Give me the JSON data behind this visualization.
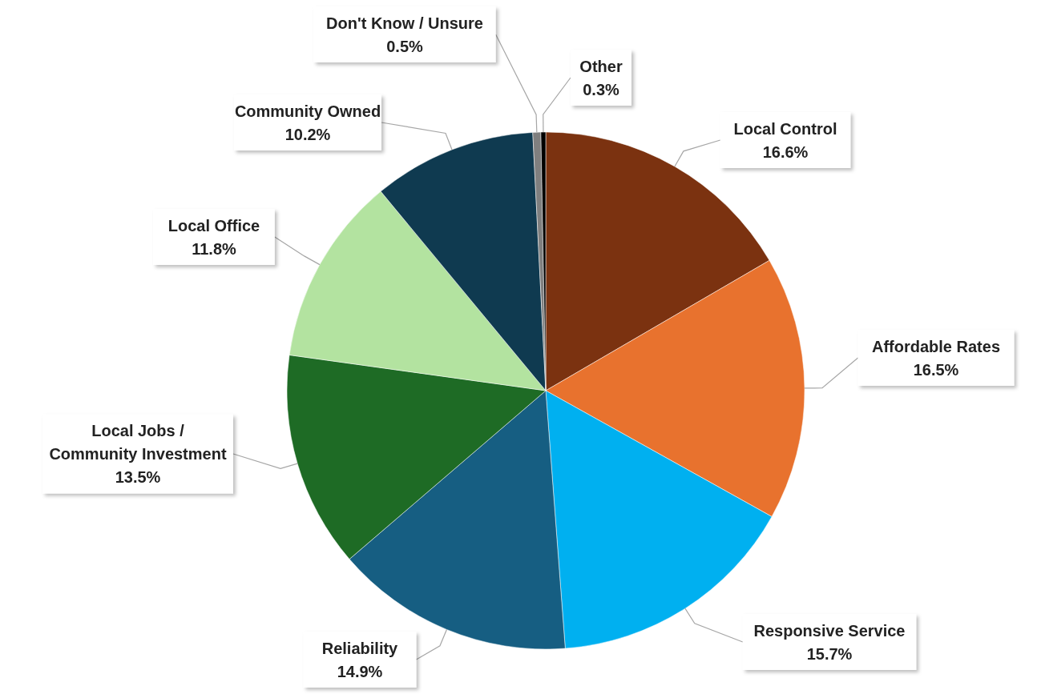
{
  "chart_data": {
    "type": "pie",
    "categories": [
      "Local Control",
      "Affordable Rates",
      "Responsive Service",
      "Reliability",
      "Local Jobs / Community Investment",
      "Local Office",
      "Community Owned",
      "Don't Know / Unsure",
      "Other"
    ],
    "values": [
      16.6,
      16.5,
      15.7,
      14.9,
      13.5,
      11.8,
      10.2,
      0.5,
      0.3
    ],
    "value_labels": [
      "16.6%",
      "16.5%",
      "15.7%",
      "14.9%",
      "13.5%",
      "11.8%",
      "10.2%",
      "0.5%",
      "0.3%"
    ],
    "colors": [
      "#7b3210",
      "#e8722e",
      "#00b0f0",
      "#165e82",
      "#1e6b25",
      "#b3e3a0",
      "#0f3a50",
      "#7f7f7f",
      "#000000"
    ]
  }
}
